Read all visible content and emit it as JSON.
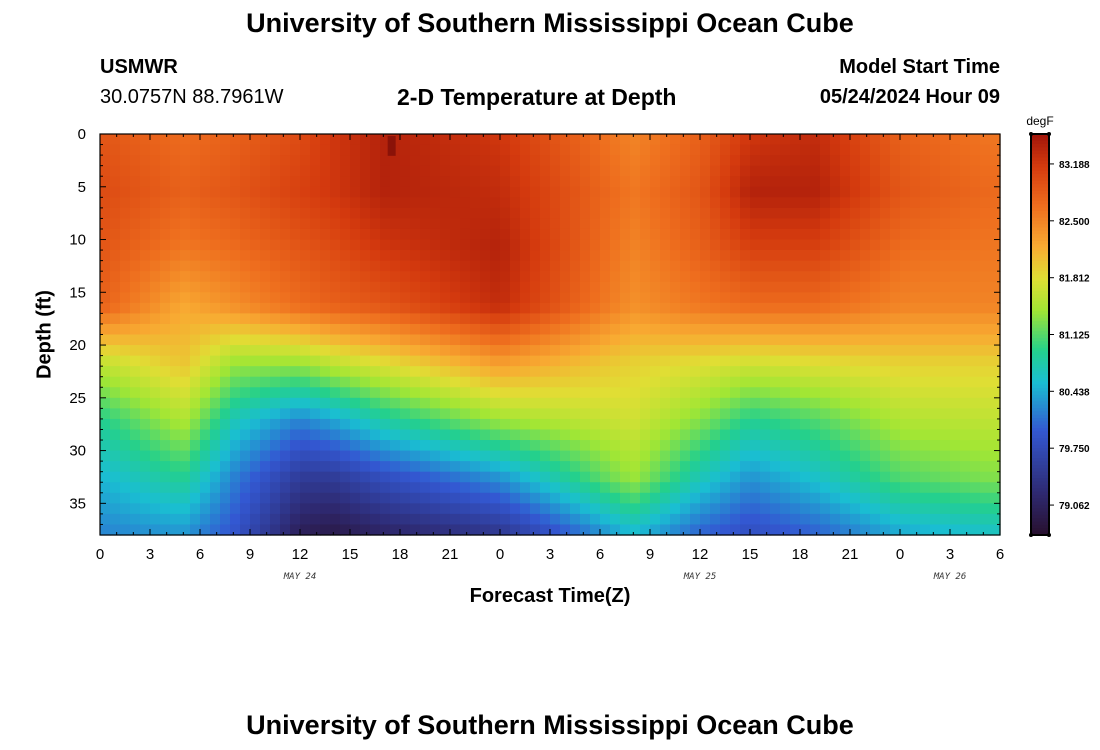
{
  "page": {
    "title_top": "University of Southern Mississippi Ocean Cube",
    "title_bottom": "University of Southern Mississippi Ocean Cube",
    "station": "USMWR",
    "coords": "30.0757N  88.7961W",
    "panel_title": "2-D Temperature at Depth",
    "model_start_label": "Model Start Time",
    "model_start_value": "05/24/2024 Hour 09"
  },
  "chart_data": {
    "type": "heatmap",
    "title": "2-D Temperature at Depth",
    "xlabel": "Forecast Time(Z)",
    "ylabel": "Depth (ft)",
    "x_hours": [
      0,
      54
    ],
    "y_depth_ft": [
      0,
      38
    ],
    "x_ticks": [
      "0",
      "3",
      "6",
      "9",
      "12",
      "15",
      "18",
      "21",
      "0",
      "3",
      "6",
      "9",
      "12",
      "15",
      "18",
      "21",
      "0",
      "3",
      "6"
    ],
    "y_ticks": [
      "0",
      "5",
      "10",
      "15",
      "20",
      "25",
      "30",
      "35"
    ],
    "date_labels": [
      {
        "text": "MAY 24",
        "hour": 12
      },
      {
        "text": "MAY 25",
        "hour": 36
      },
      {
        "text": "MAY 26",
        "hour": 51
      }
    ],
    "colorbar": {
      "unit": "degF",
      "min": 78.7,
      "max": 83.55,
      "tick_values": [
        83.188,
        82.5,
        81.812,
        81.125,
        80.438,
        79.75,
        79.062
      ],
      "tick_labels": [
        "83.188",
        "82.500",
        "81.812",
        "81.125",
        "80.438",
        "79.750",
        "79.062"
      ]
    },
    "field_hours": [
      0,
      5,
      8,
      12,
      14,
      17,
      24,
      32,
      36,
      39,
      43,
      48,
      54
    ],
    "field_profiles": [
      [
        82.9,
        83.0,
        82.9,
        82.8,
        81.6,
        80.9,
        80.5,
        80.2
      ],
      [
        82.7,
        82.8,
        82.6,
        82.2,
        82.0,
        81.5,
        80.9,
        80.3
      ],
      [
        82.8,
        82.9,
        82.7,
        82.4,
        81.4,
        80.7,
        80.2,
        79.9
      ],
      [
        83.0,
        83.1,
        82.9,
        82.7,
        81.4,
        80.2,
        79.5,
        79.0
      ],
      [
        83.2,
        83.2,
        83.0,
        82.8,
        81.6,
        80.4,
        79.5,
        78.9
      ],
      [
        83.4,
        83.4,
        83.2,
        82.9,
        81.8,
        80.8,
        79.8,
        79.1
      ],
      [
        83.2,
        83.3,
        83.4,
        83.3,
        82.3,
        81.4,
        80.3,
        79.4
      ],
      [
        82.5,
        82.6,
        82.5,
        82.4,
        81.9,
        81.7,
        81.4,
        80.5
      ],
      [
        82.8,
        82.9,
        82.8,
        82.6,
        81.8,
        81.3,
        80.7,
        80.0
      ],
      [
        83.2,
        83.4,
        83.1,
        82.7,
        81.7,
        80.9,
        80.3,
        79.8
      ],
      [
        83.3,
        83.4,
        83.1,
        82.7,
        81.8,
        81.1,
        80.6,
        80.0
      ],
      [
        82.8,
        82.9,
        82.7,
        82.5,
        81.9,
        81.5,
        81.1,
        80.4
      ],
      [
        82.6,
        82.7,
        82.6,
        82.5,
        81.9,
        81.6,
        81.3,
        80.6
      ]
    ],
    "anomaly": {
      "hour": 17.5,
      "depth": [
        0,
        1.5
      ],
      "value": 83.55
    }
  }
}
